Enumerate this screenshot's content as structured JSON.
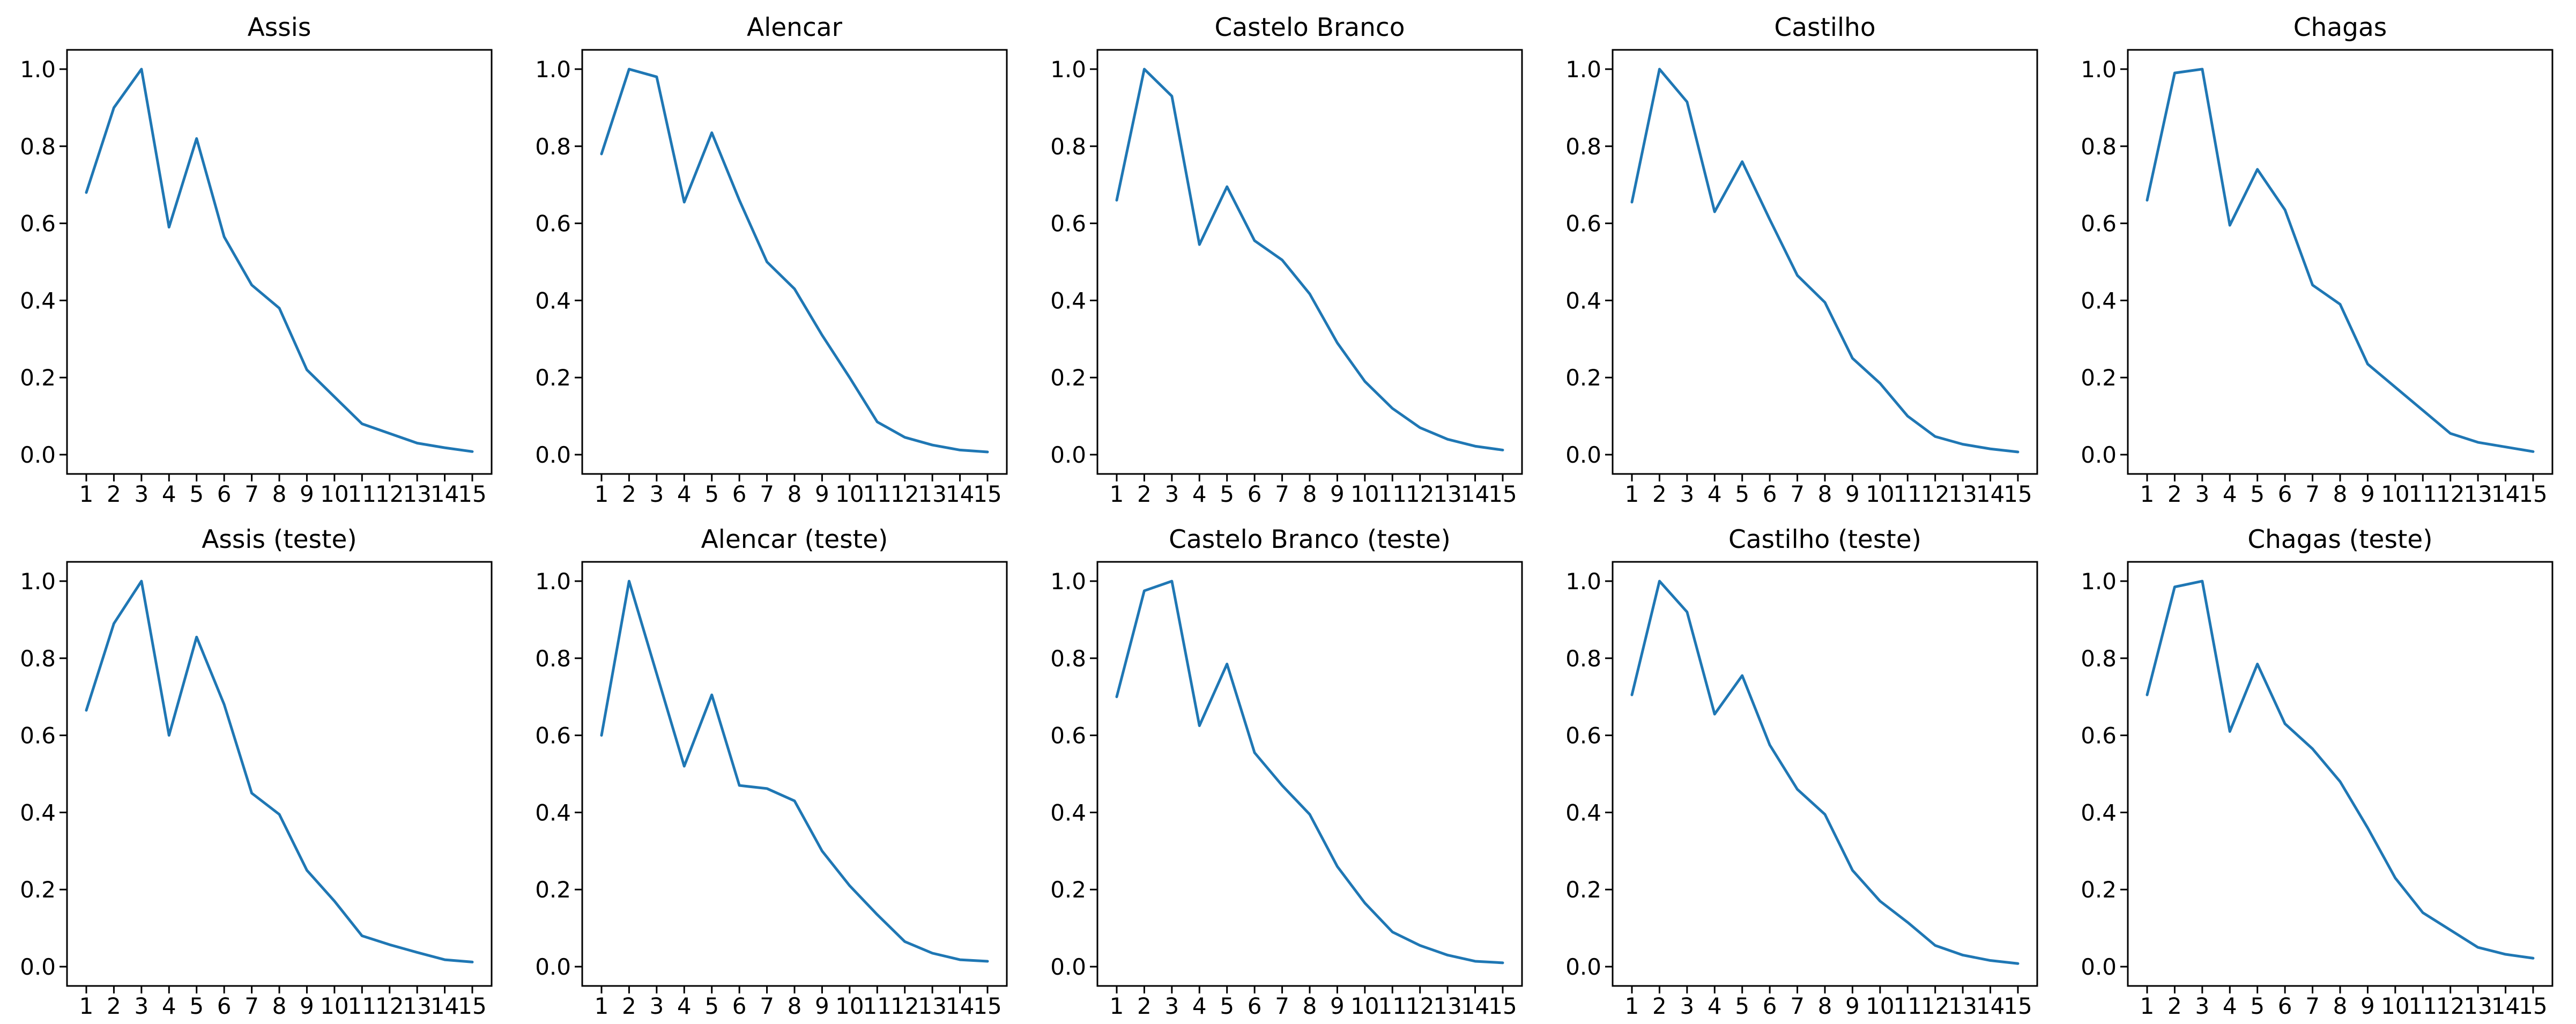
{
  "figure": {
    "background": "#ffffff",
    "line_color": "#1f77b4",
    "grid": {
      "rows": 2,
      "cols": 5
    },
    "y_tick_labels": [
      "0.0",
      "0.2",
      "0.4",
      "0.6",
      "0.8",
      "1.0"
    ],
    "x_tick_labels": [
      "1",
      "2",
      "3",
      "4",
      "5",
      "6",
      "7",
      "8",
      "9",
      "10",
      "11",
      "12",
      "13",
      "14",
      "15"
    ]
  },
  "chart_data": [
    {
      "type": "line",
      "title": "Assis",
      "x": [
        1,
        2,
        3,
        4,
        5,
        6,
        7,
        8,
        9,
        10,
        11,
        12,
        13,
        14,
        15
      ],
      "values": [
        0.68,
        0.9,
        1.0,
        0.59,
        0.82,
        0.565,
        0.44,
        0.38,
        0.22,
        0.15,
        0.08,
        0.055,
        0.03,
        0.018,
        0.008
      ],
      "xlabel": "",
      "ylabel": "",
      "xlim": [
        0.3,
        15.7
      ],
      "ylim": [
        -0.05,
        1.05
      ],
      "grid": false,
      "legend": false,
      "line_color": "#1f77b4"
    },
    {
      "type": "line",
      "title": "Alencar",
      "x": [
        1,
        2,
        3,
        4,
        5,
        6,
        7,
        8,
        9,
        10,
        11,
        12,
        13,
        14,
        15
      ],
      "values": [
        0.78,
        1.0,
        0.98,
        0.655,
        0.835,
        0.66,
        0.5,
        0.43,
        0.31,
        0.2,
        0.085,
        0.045,
        0.025,
        0.012,
        0.007
      ],
      "xlabel": "",
      "ylabel": "",
      "xlim": [
        0.3,
        15.7
      ],
      "ylim": [
        -0.05,
        1.05
      ],
      "grid": false,
      "legend": false,
      "line_color": "#1f77b4"
    },
    {
      "type": "line",
      "title": "Castelo Branco",
      "x": [
        1,
        2,
        3,
        4,
        5,
        6,
        7,
        8,
        9,
        10,
        11,
        12,
        13,
        14,
        15
      ],
      "values": [
        0.66,
        1.0,
        0.93,
        0.545,
        0.695,
        0.555,
        0.505,
        0.417,
        0.29,
        0.19,
        0.12,
        0.07,
        0.04,
        0.022,
        0.012
      ],
      "xlabel": "",
      "ylabel": "",
      "xlim": [
        0.3,
        15.7
      ],
      "ylim": [
        -0.05,
        1.05
      ],
      "grid": false,
      "legend": false,
      "line_color": "#1f77b4"
    },
    {
      "type": "line",
      "title": "Castilho",
      "x": [
        1,
        2,
        3,
        4,
        5,
        6,
        7,
        8,
        9,
        10,
        11,
        12,
        13,
        14,
        15
      ],
      "values": [
        0.655,
        1.0,
        0.915,
        0.63,
        0.76,
        0.61,
        0.465,
        0.395,
        0.25,
        0.185,
        0.1,
        0.047,
        0.027,
        0.015,
        0.007
      ],
      "xlabel": "",
      "ylabel": "",
      "xlim": [
        0.3,
        15.7
      ],
      "ylim": [
        -0.05,
        1.05
      ],
      "grid": false,
      "legend": false,
      "line_color": "#1f77b4"
    },
    {
      "type": "line",
      "title": "Chagas",
      "x": [
        1,
        2,
        3,
        4,
        5,
        6,
        7,
        8,
        9,
        10,
        11,
        12,
        13,
        14,
        15
      ],
      "values": [
        0.66,
        0.99,
        1.0,
        0.595,
        0.74,
        0.635,
        0.44,
        0.39,
        0.235,
        0.175,
        0.115,
        0.055,
        0.032,
        0.02,
        0.008
      ],
      "xlabel": "",
      "ylabel": "",
      "xlim": [
        0.3,
        15.7
      ],
      "ylim": [
        -0.05,
        1.05
      ],
      "grid": false,
      "legend": false,
      "line_color": "#1f77b4"
    },
    {
      "type": "line",
      "title": "Assis (teste)",
      "x": [
        1,
        2,
        3,
        4,
        5,
        6,
        7,
        8,
        9,
        10,
        11,
        12,
        13,
        14,
        15
      ],
      "values": [
        0.665,
        0.89,
        1.0,
        0.6,
        0.855,
        0.68,
        0.45,
        0.395,
        0.25,
        0.17,
        0.08,
        0.057,
        0.037,
        0.018,
        0.012
      ],
      "xlabel": "",
      "ylabel": "",
      "xlim": [
        0.3,
        15.7
      ],
      "ylim": [
        -0.05,
        1.05
      ],
      "grid": false,
      "legend": false,
      "line_color": "#1f77b4"
    },
    {
      "type": "line",
      "title": "Alencar (teste)",
      "x": [
        1,
        2,
        3,
        4,
        5,
        6,
        7,
        8,
        9,
        10,
        11,
        12,
        13,
        14,
        15
      ],
      "values": [
        0.6,
        1.0,
        0.76,
        0.52,
        0.705,
        0.47,
        0.462,
        0.43,
        0.3,
        0.21,
        0.135,
        0.065,
        0.035,
        0.018,
        0.014
      ],
      "xlabel": "",
      "ylabel": "",
      "xlim": [
        0.3,
        15.7
      ],
      "ylim": [
        -0.05,
        1.05
      ],
      "grid": false,
      "legend": false,
      "line_color": "#1f77b4"
    },
    {
      "type": "line",
      "title": "Castelo Branco (teste)",
      "x": [
        1,
        2,
        3,
        4,
        5,
        6,
        7,
        8,
        9,
        10,
        11,
        12,
        13,
        14,
        15
      ],
      "values": [
        0.7,
        0.975,
        1.0,
        0.625,
        0.785,
        0.555,
        0.47,
        0.395,
        0.26,
        0.165,
        0.09,
        0.055,
        0.03,
        0.014,
        0.01
      ],
      "xlabel": "",
      "ylabel": "",
      "xlim": [
        0.3,
        15.7
      ],
      "ylim": [
        -0.05,
        1.05
      ],
      "grid": false,
      "legend": false,
      "line_color": "#1f77b4"
    },
    {
      "type": "line",
      "title": "Castilho (teste)",
      "x": [
        1,
        2,
        3,
        4,
        5,
        6,
        7,
        8,
        9,
        10,
        11,
        12,
        13,
        14,
        15
      ],
      "values": [
        0.705,
        1.0,
        0.92,
        0.655,
        0.755,
        0.575,
        0.46,
        0.395,
        0.25,
        0.17,
        0.115,
        0.055,
        0.03,
        0.016,
        0.008
      ],
      "xlabel": "",
      "ylabel": "",
      "xlim": [
        0.3,
        15.7
      ],
      "ylim": [
        -0.05,
        1.05
      ],
      "grid": false,
      "legend": false,
      "line_color": "#1f77b4"
    },
    {
      "type": "line",
      "title": "Chagas (teste)",
      "x": [
        1,
        2,
        3,
        4,
        5,
        6,
        7,
        8,
        9,
        10,
        11,
        12,
        13,
        14,
        15
      ],
      "values": [
        0.705,
        0.985,
        1.0,
        0.61,
        0.785,
        0.63,
        0.565,
        0.48,
        0.36,
        0.23,
        0.14,
        0.095,
        0.05,
        0.032,
        0.022
      ],
      "xlabel": "",
      "ylabel": "",
      "xlim": [
        0.3,
        15.7
      ],
      "ylim": [
        -0.05,
        1.05
      ],
      "grid": false,
      "legend": false,
      "line_color": "#1f77b4"
    }
  ]
}
